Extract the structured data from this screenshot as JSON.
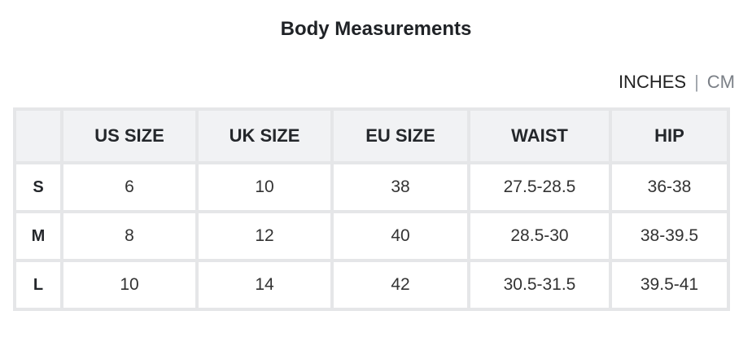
{
  "title": "Body Measurements",
  "units": {
    "inches": "INCHES",
    "separator": "|",
    "cm": "CM",
    "selected": "INCHES"
  },
  "table": {
    "headers": [
      "",
      "US SIZE",
      "UK SIZE",
      "EU SIZE",
      "WAIST",
      "HIP"
    ],
    "rows": [
      [
        "S",
        "6",
        "10",
        "38",
        "27.5-28.5",
        "36-38"
      ],
      [
        "M",
        "8",
        "12",
        "40",
        "28.5-30",
        "38-39.5"
      ],
      [
        "L",
        "10",
        "14",
        "42",
        "30.5-31.5",
        "39.5-41"
      ]
    ]
  }
}
